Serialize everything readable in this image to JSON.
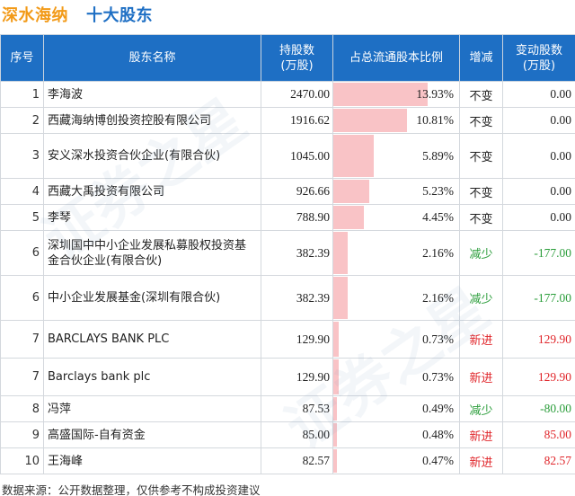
{
  "header": {
    "company": "深水海纳",
    "subtitle": "十大股东"
  },
  "columns": {
    "rank": "序号",
    "name": "股东名称",
    "shares_line1": "持股数",
    "shares_line2": "(万股)",
    "ratio": "占总流通股本比例",
    "change": "增减",
    "delta_line1": "变动股数",
    "delta_line2": "(万股)"
  },
  "chart_data": {
    "type": "table",
    "title": "十大股东",
    "ratio_unit": "%",
    "rows": [
      {
        "rank": "1",
        "name": "李海波",
        "shares": "2470.00",
        "ratio": 13.93,
        "ratio_label": "13.93%",
        "change": "不变",
        "change_type": "same",
        "delta": "0.00"
      },
      {
        "rank": "2",
        "name": "西藏海纳博创投资控股有限公司",
        "shares": "1916.62",
        "ratio": 10.81,
        "ratio_label": "10.81%",
        "change": "不变",
        "change_type": "same",
        "delta": "0.00"
      },
      {
        "rank": "3",
        "name": "安义深水投资合伙企业(有限合伙)",
        "shares": "1045.00",
        "ratio": 5.89,
        "ratio_label": "5.89%",
        "change": "不变",
        "change_type": "same",
        "delta": "0.00"
      },
      {
        "rank": "4",
        "name": "西藏大禹投资有限公司",
        "shares": "926.66",
        "ratio": 5.23,
        "ratio_label": "5.23%",
        "change": "不变",
        "change_type": "same",
        "delta": "0.00"
      },
      {
        "rank": "5",
        "name": "李琴",
        "shares": "788.90",
        "ratio": 4.45,
        "ratio_label": "4.45%",
        "change": "不变",
        "change_type": "same",
        "delta": "0.00"
      },
      {
        "rank": "6",
        "name": "深圳国中中小企业发展私募股权投资基金合伙企业(有限合伙)",
        "shares": "382.39",
        "ratio": 2.16,
        "ratio_label": "2.16%",
        "change": "减少",
        "change_type": "down",
        "delta": "-177.00"
      },
      {
        "rank": "6",
        "name": "中小企业发展基金(深圳有限合伙)",
        "shares": "382.39",
        "ratio": 2.16,
        "ratio_label": "2.16%",
        "change": "减少",
        "change_type": "down",
        "delta": "-177.00"
      },
      {
        "rank": "7",
        "name": "BARCLAYS BANK PLC",
        "shares": "129.90",
        "ratio": 0.73,
        "ratio_label": "0.73%",
        "change": "新进",
        "change_type": "new",
        "delta": "129.90"
      },
      {
        "rank": "7",
        "name": "Barclays bank plc",
        "shares": "129.90",
        "ratio": 0.73,
        "ratio_label": "0.73%",
        "change": "新进",
        "change_type": "new",
        "delta": "129.90"
      },
      {
        "rank": "8",
        "name": "冯萍",
        "shares": "87.53",
        "ratio": 0.49,
        "ratio_label": "0.49%",
        "change": "减少",
        "change_type": "down",
        "delta": "-80.00"
      },
      {
        "rank": "9",
        "name": "高盛国际-自有资金",
        "shares": "85.00",
        "ratio": 0.48,
        "ratio_label": "0.48%",
        "change": "新进",
        "change_type": "new",
        "delta": "85.00"
      },
      {
        "rank": "10",
        "name": "王海峰",
        "shares": "82.57",
        "ratio": 0.47,
        "ratio_label": "0.47%",
        "change": "新进",
        "change_type": "new",
        "delta": "82.57"
      }
    ],
    "ratio_scale_max": 18.5
  },
  "footer": {
    "source": "数据来源：公开数据整理，仅供参考不构成投资建议"
  },
  "colors": {
    "header_bg": "#1e6fc4",
    "title_company": "#f29a18",
    "title_sub": "#1e6fc4",
    "bar": "#f9c3c6",
    "down": "#2a9d3a",
    "new": "#e0262b"
  },
  "watermark": "证券之星"
}
